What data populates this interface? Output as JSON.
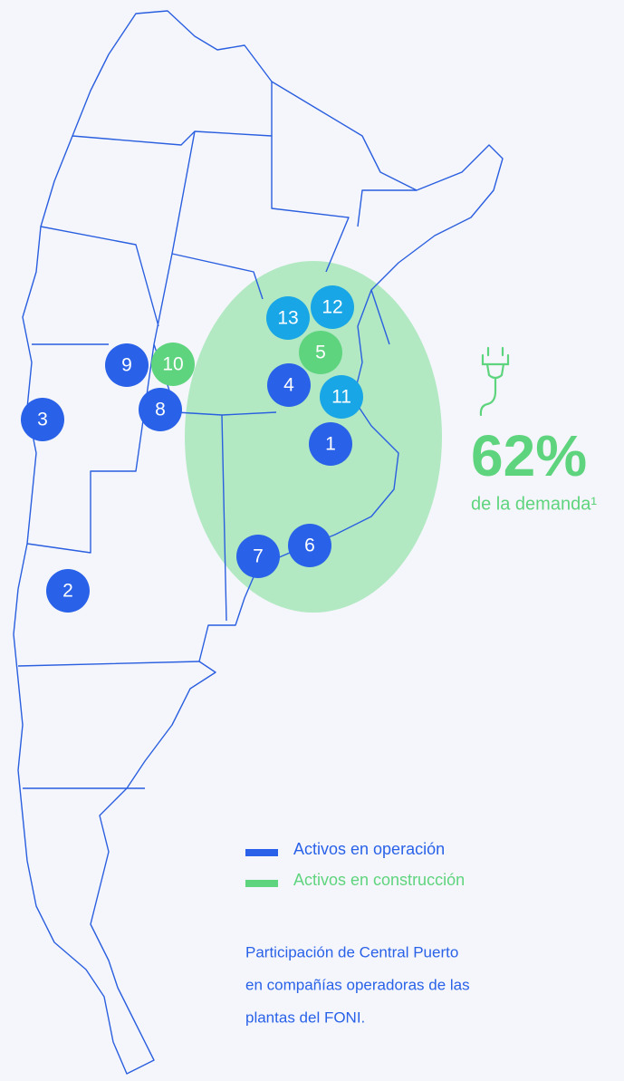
{
  "map": {
    "markers": [
      {
        "label": "1",
        "group": "operation"
      },
      {
        "label": "2",
        "group": "operation"
      },
      {
        "label": "3",
        "group": "operation"
      },
      {
        "label": "4",
        "group": "operation"
      },
      {
        "label": "5",
        "group": "construction"
      },
      {
        "label": "6",
        "group": "operation"
      },
      {
        "label": "7",
        "group": "operation"
      },
      {
        "label": "8",
        "group": "operation"
      },
      {
        "label": "9",
        "group": "operation"
      },
      {
        "label": "10",
        "group": "construction"
      },
      {
        "label": "11",
        "group": "foni"
      },
      {
        "label": "12",
        "group": "foni"
      },
      {
        "label": "13",
        "group": "foni"
      }
    ],
    "colors": {
      "operation": "#2962e8",
      "construction": "#5fd47e",
      "foni": "#18a6e6"
    },
    "stat": {
      "value": "62%",
      "caption": "de la demanda¹"
    },
    "legend": [
      {
        "label": "Activos en operación",
        "group": "operation"
      },
      {
        "label": "Activos en construcción",
        "group": "construction"
      }
    ],
    "note": [
      "Participación de Central Puerto",
      "en compañías operadoras de las",
      "plantas del FONI."
    ]
  }
}
